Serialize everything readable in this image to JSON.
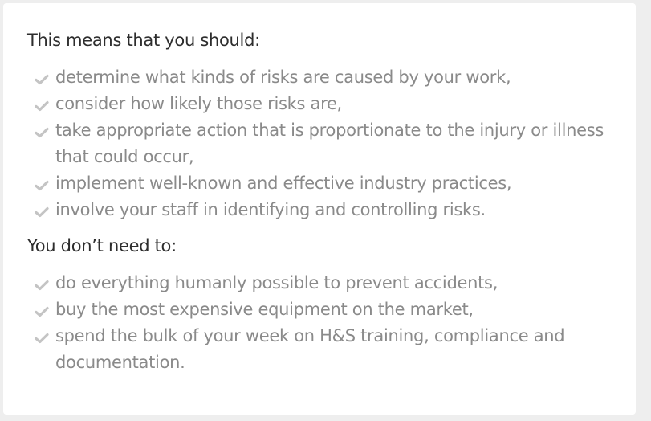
{
  "section_should": {
    "heading": "This means that you should:",
    "items": [
      "determine what kinds of risks are caused by your work,",
      "consider how likely those risks are,",
      "take appropriate action that is proportionate to the injury or illness that could occur,",
      "implement well-known and effective industry practices,",
      "involve your staff in identifying and controlling risks."
    ]
  },
  "section_dont": {
    "heading": "You don’t need to:",
    "items": [
      "do everything humanly possible to prevent accidents,",
      "buy the most expensive equipment on the market,",
      "spend the bulk of your week on H&S training, compliance and documentation."
    ]
  },
  "icon": "check-icon",
  "colors": {
    "heading": "#2d2d2d",
    "item_text": "#8a8a8a",
    "check": "#c4c4c4",
    "card_bg": "#ffffff",
    "page_bg": "#eeeeee"
  }
}
